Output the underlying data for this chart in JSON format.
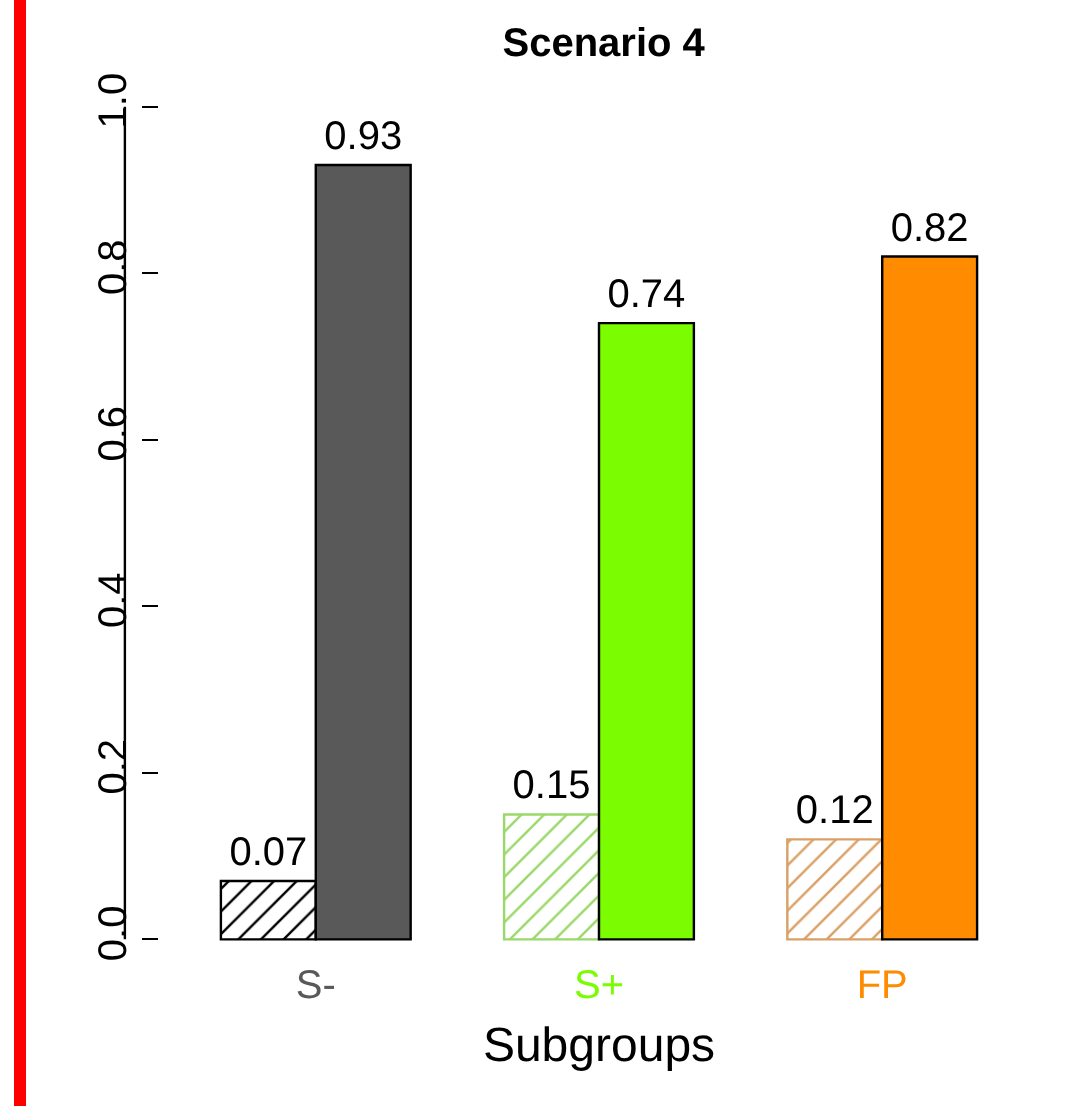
{
  "chart_data": {
    "type": "bar",
    "title": "Scenario 4",
    "xlabel": "Subgroups",
    "categories": [
      "S-",
      "S+",
      "FP"
    ],
    "series": [
      {
        "colors": [
          "#000000",
          "#9ad86a",
          "#d9a066"
        ],
        "values": [
          0.07,
          0.15,
          0.12
        ]
      },
      {
        "colors": [
          "#595959",
          "#7cfc00",
          "#ff8c00"
        ],
        "values": [
          0.93,
          0.74,
          0.82
        ]
      }
    ],
    "ylim": [
      0,
      1
    ],
    "yticks": [
      {
        "value": 0,
        "label": "0.0"
      },
      0.2,
      0.4,
      0.6,
      0.8,
      {
        "value": 1,
        "label": "1.0"
      }
    ],
    "data_labels": true,
    "grid": false
  }
}
